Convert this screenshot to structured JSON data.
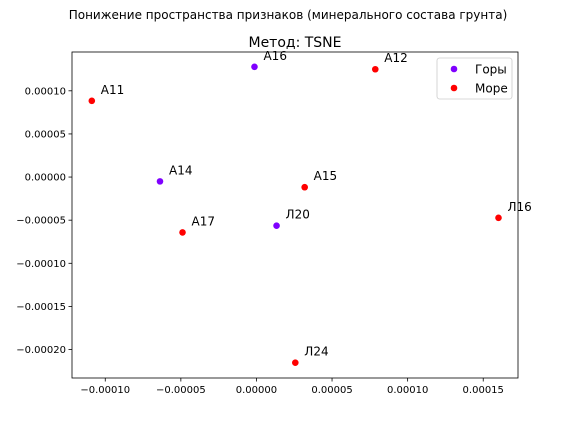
{
  "figure": {
    "suptitle": "Понижение пространства признаков (минерального состава грунта)"
  },
  "colors": {
    "mountains": "#7f00ff",
    "sea": "#ff0000"
  },
  "chart_data": {
    "type": "scatter",
    "title": "Метод: TSNE",
    "xlabel": "",
    "ylabel": "",
    "xlim": [
      -0.000122,
      0.000173
    ],
    "ylim": [
      -0.000233,
      0.000145
    ],
    "x_ticks": [
      -0.0001,
      -5e-05,
      0.0,
      5e-05,
      0.0001,
      0.00015
    ],
    "x_tick_labels": [
      "−0.00010",
      "−0.00005",
      "0.00000",
      "0.00005",
      "0.00010",
      "0.00015"
    ],
    "y_ticks": [
      0.0001,
      5e-05,
      0.0,
      -5e-05,
      -0.0001,
      -0.00015,
      -0.0002
    ],
    "y_tick_labels": [
      "0.00010",
      "0.00005",
      "0.00000",
      "−0.00005",
      "−0.00010",
      "−0.00015",
      "−0.00020"
    ],
    "grid": false,
    "legend_position": "top-right",
    "series": [
      {
        "name": "Горы",
        "color": "#7f00ff",
        "points": [
          {
            "label": "А16",
            "x": -1.3e-06,
            "y": 0.0001278
          },
          {
            "label": "А14",
            "x": -6.38e-05,
            "y": -5e-06
          },
          {
            "label": "Л20",
            "x": 1.33e-05,
            "y": -5.64e-05
          }
        ]
      },
      {
        "name": "Море",
        "color": "#ff0000",
        "points": [
          {
            "label": "А11",
            "x": -0.0001089,
            "y": 8.84e-05
          },
          {
            "label": "А12",
            "x": 7.86e-05,
            "y": 0.000125
          },
          {
            "label": "А15",
            "x": 3.19e-05,
            "y": -1.18e-05
          },
          {
            "label": "А17",
            "x": -4.89e-05,
            "y": -6.42e-05
          },
          {
            "label": "Л16",
            "x": 0.0001601,
            "y": -4.73e-05
          },
          {
            "label": "Л24",
            "x": 2.57e-05,
            "y": -0.0002152
          }
        ]
      }
    ]
  }
}
